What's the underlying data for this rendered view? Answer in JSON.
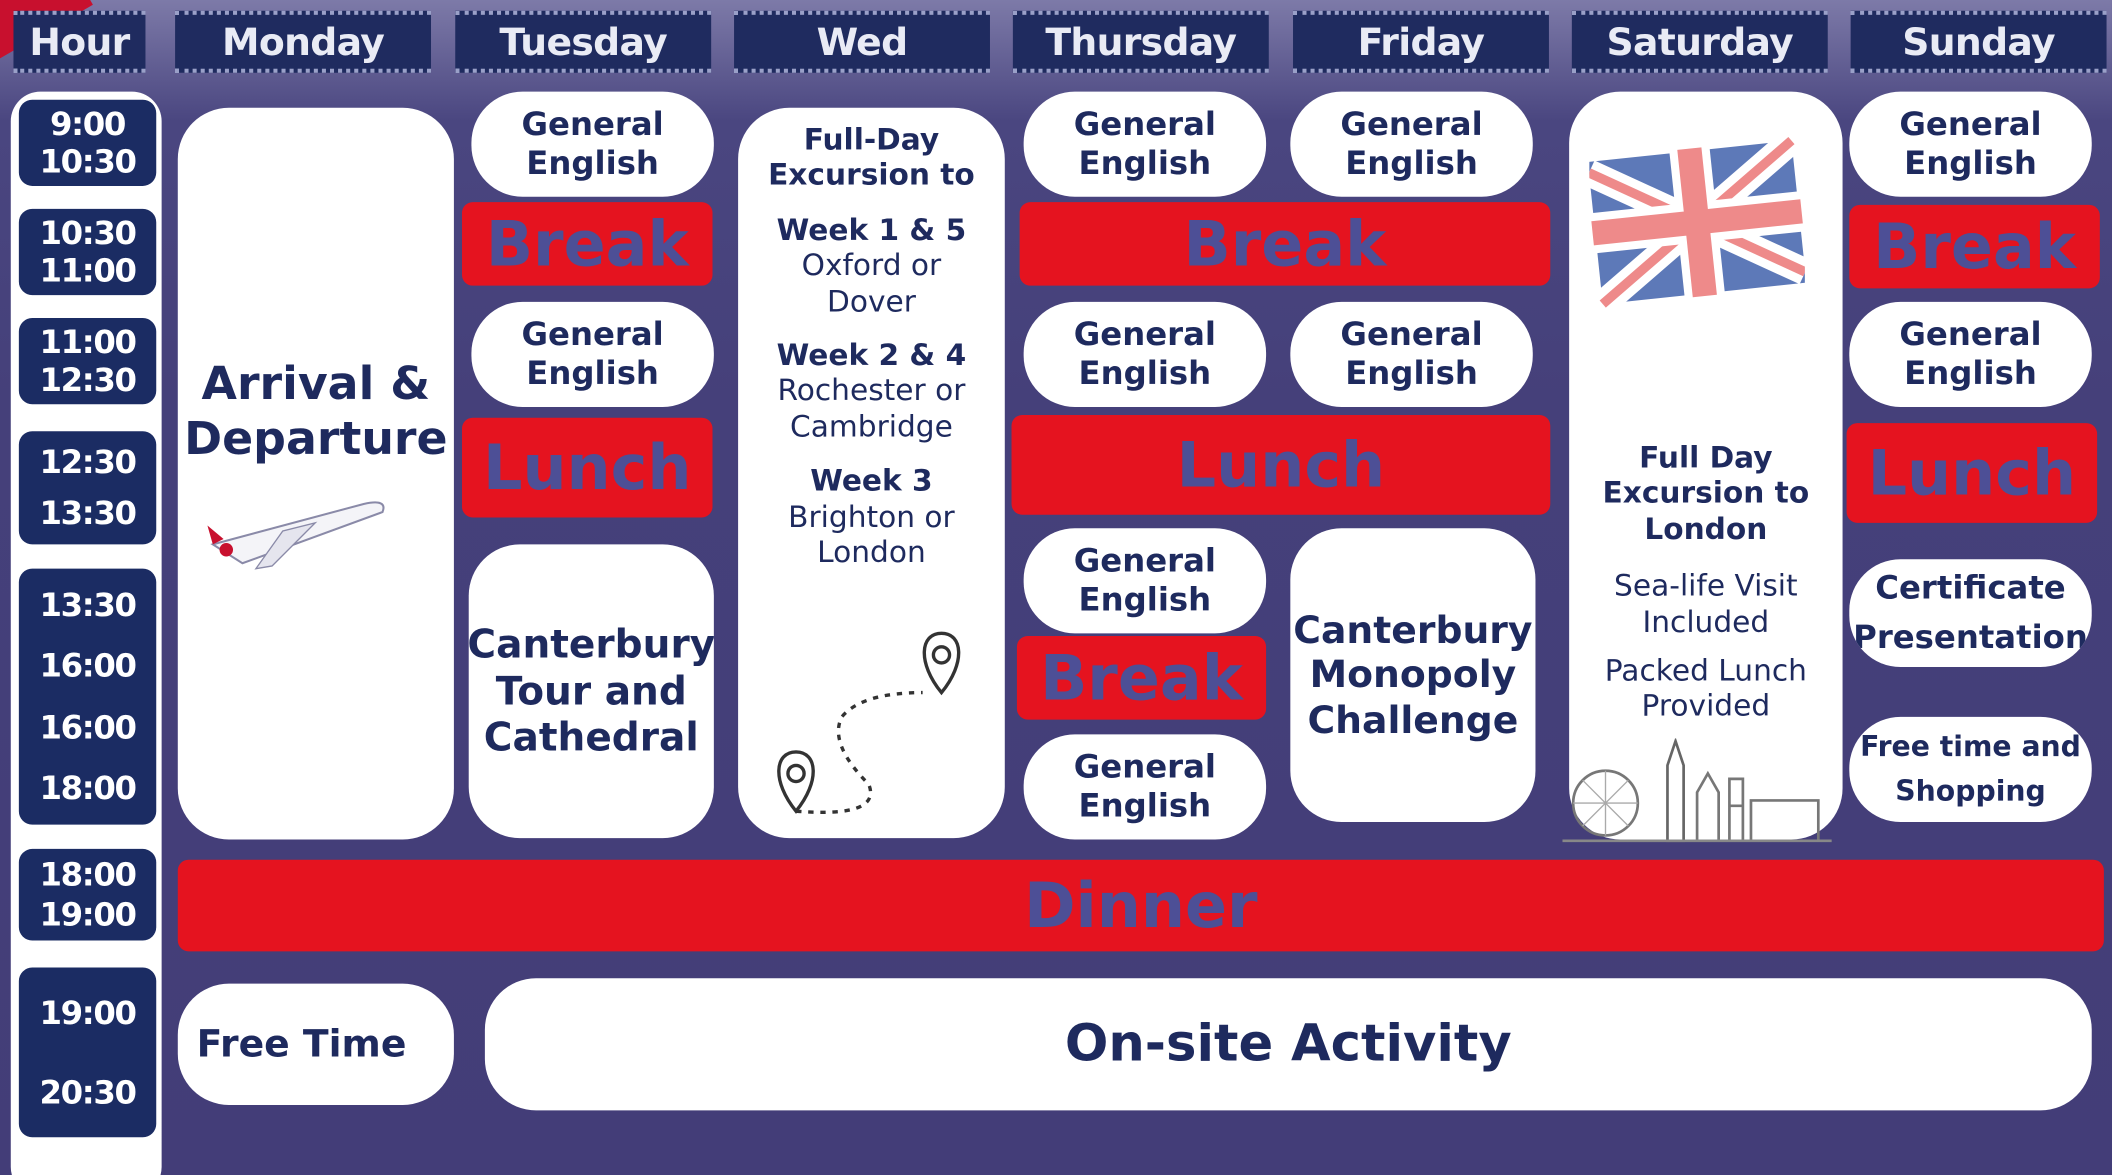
{
  "header": [
    "Hour",
    "Monday",
    "Tuesday",
    "Wed",
    "Thursday",
    "Friday",
    "Saturday",
    "Sunday"
  ],
  "times": [
    [
      "9:00",
      "10:30"
    ],
    [
      "10:30",
      "11:00"
    ],
    [
      "11:00",
      "12:30"
    ],
    [
      "12:30",
      "13:30"
    ],
    [
      "13:30",
      "16:00",
      "16:00",
      "18:00"
    ],
    [
      "18:00",
      "19:00"
    ],
    [
      "19:00",
      "20:30"
    ]
  ],
  "blocks": [
    {
      "text": "Arrival & Departure"
    },
    {
      "text": "Free Time"
    },
    {
      "text": "General English"
    },
    {
      "text": "Break"
    },
    {
      "text": "General English"
    },
    {
      "text": "Lunch"
    },
    {
      "text": "Canterbury Tour and Cathedral"
    },
    {
      "lines": [
        "Full-Day",
        "Excursion to",
        "Week 1 & 5",
        "Oxford or",
        "Dover",
        "Week 2 & 4",
        "Rochester or",
        "Cambridge",
        "Week 3",
        "Brighton or",
        "London"
      ]
    },
    {
      "text": "General English"
    },
    {
      "text": "Break"
    },
    {
      "text": "General English"
    },
    {
      "text": "Lunch"
    },
    {
      "text": "General English"
    },
    {
      "text": "Break"
    },
    {
      "text": "General English"
    },
    {
      "text": "General English"
    },
    {
      "text": "General English"
    },
    {
      "text": "Canterbury Monopoly Challenge"
    },
    {
      "lines": [
        "Full Day",
        "Excursion to",
        "London",
        "Sea-life Visit",
        "Included",
        "Packed Lunch",
        "Provided"
      ]
    },
    {
      "text": "General English"
    },
    {
      "text": "Break"
    },
    {
      "text": "General English"
    },
    {
      "text": "Lunch"
    },
    {
      "text": "Certificate Presentation"
    },
    {
      "text": "Free time and Shopping"
    },
    {
      "text": "Dinner"
    },
    {
      "text": "On-site Activity"
    }
  ]
}
